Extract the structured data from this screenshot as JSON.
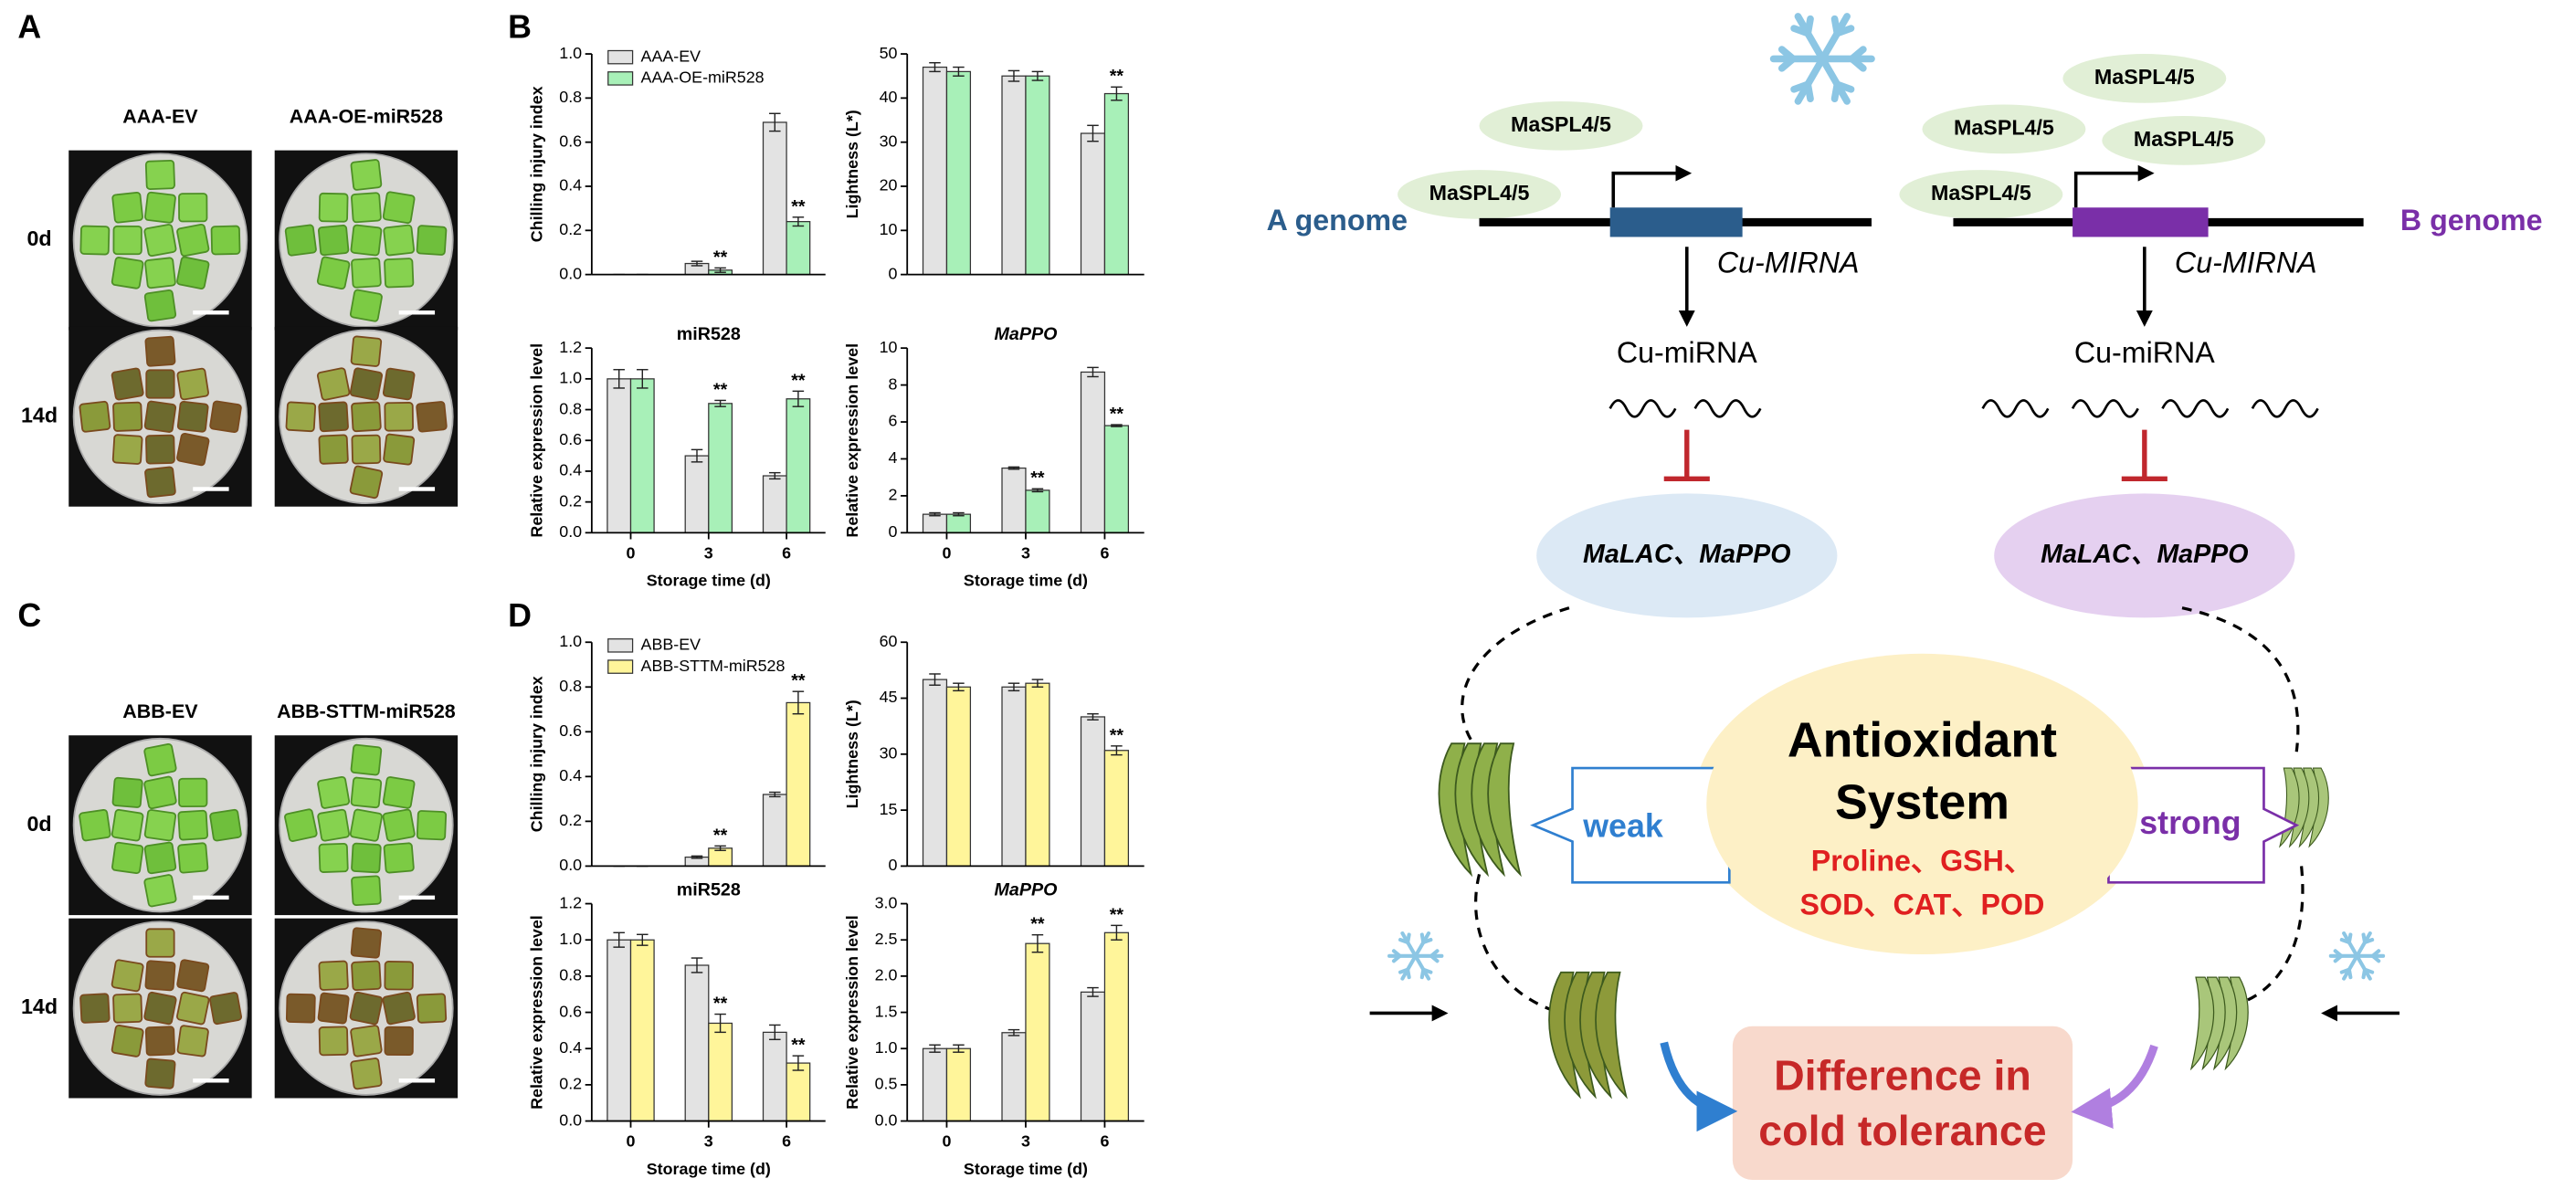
{
  "panels": {
    "a": "A",
    "b": "B",
    "c": "C",
    "d": "D"
  },
  "photos": [
    {
      "columns": [
        "AAA-EV",
        "AAA-OE-miR528"
      ],
      "rows": [
        "0d",
        "14d"
      ]
    },
    {
      "columns": [
        "ABB-EV",
        "ABB-STTM-miR528"
      ],
      "rows": [
        "0d",
        "14d"
      ]
    }
  ],
  "chart_data": [
    {
      "type": "bar",
      "ylabel": "Chilling injury index",
      "legend": "upper left",
      "ylim": [
        0,
        1.0
      ],
      "yticks": [
        {
          "value": 0,
          "label": "0.0"
        },
        0.2,
        0.4,
        0.6,
        0.8,
        {
          "value": 1.0,
          "label": "1.0"
        }
      ],
      "series": [
        {
          "name": "AAA-EV",
          "color": "#e3e3e3",
          "values": [
            0,
            0.05,
            0.69
          ],
          "errors": [
            0,
            0.01,
            0.04
          ]
        },
        {
          "name": "AAA-OE-miR528",
          "color": "#a8f0b8",
          "values": [
            0,
            0.02,
            0.24
          ],
          "errors": [
            0,
            0.01,
            0.02
          ],
          "significance": [
            null,
            "**",
            "**"
          ]
        }
      ]
    },
    {
      "type": "bar",
      "ylabel": "Lightness (L*)",
      "ylim": [
        0,
        50
      ],
      "yticks": [
        0,
        10,
        20,
        30,
        40,
        50
      ],
      "series": [
        {
          "color": "#e3e3e3",
          "values": [
            47,
            45,
            32
          ],
          "errors": [
            1,
            1.2,
            1.8
          ]
        },
        {
          "color": "#a8f0b8",
          "values": [
            46,
            45,
            41
          ],
          "errors": [
            1,
            1,
            1.5
          ],
          "significance": [
            null,
            null,
            "**"
          ]
        }
      ]
    },
    {
      "type": "bar",
      "title": "miR528",
      "ylabel": "Relative expression level",
      "xlabel": "Storage time (d)",
      "categories": [
        "0",
        "3",
        "6"
      ],
      "ylim": [
        0,
        1.2
      ],
      "yticks": [
        {
          "value": 0,
          "label": "0.0"
        },
        0.2,
        0.4,
        0.6,
        0.8,
        {
          "value": 1.0,
          "label": "1.0"
        },
        1.2
      ],
      "series": [
        {
          "color": "#e3e3e3",
          "values": [
            1.0,
            0.5,
            0.37
          ],
          "errors": [
            0.06,
            0.04,
            0.02
          ]
        },
        {
          "color": "#a8f0b8",
          "values": [
            1.0,
            0.84,
            0.87
          ],
          "errors": [
            0.06,
            0.02,
            0.05
          ],
          "significance": [
            null,
            "**",
            "**"
          ]
        }
      ]
    },
    {
      "type": "bar",
      "title": "MaPPO",
      "title_style": "italic",
      "ylabel": "Relative expression level",
      "xlabel": "Storage time (d)",
      "categories": [
        "0",
        "3",
        "6"
      ],
      "ylim": [
        0,
        10
      ],
      "yticks": [
        0,
        2,
        4,
        6,
        8,
        10
      ],
      "series": [
        {
          "color": "#e3e3e3",
          "values": [
            1.0,
            3.5,
            8.7
          ],
          "errors": [
            0.08,
            0.06,
            0.25
          ]
        },
        {
          "color": "#a8f0b8",
          "values": [
            1.0,
            2.3,
            5.8
          ],
          "errors": [
            0.08,
            0.08,
            0.05
          ],
          "significance": [
            null,
            "**",
            "**"
          ]
        }
      ]
    },
    {
      "type": "bar",
      "ylabel": "Chilling injury index",
      "legend": "upper left",
      "ylim": [
        0,
        1.0
      ],
      "yticks": [
        {
          "value": 0,
          "label": "0.0"
        },
        0.2,
        0.4,
        0.6,
        0.8,
        {
          "value": 1.0,
          "label": "1.0"
        }
      ],
      "series": [
        {
          "name": "ABB-EV",
          "color": "#e3e3e3",
          "values": [
            0,
            0.04,
            0.32
          ],
          "errors": [
            0,
            0.005,
            0.01
          ]
        },
        {
          "name": "ABB-STTM-miR528",
          "color": "#fff59a",
          "values": [
            0,
            0.08,
            0.73
          ],
          "errors": [
            0,
            0.01,
            0.05
          ],
          "significance": [
            null,
            "**",
            "**"
          ]
        }
      ]
    },
    {
      "type": "bar",
      "ylabel": "Lightness (L*)",
      "ylim": [
        0,
        60
      ],
      "yticks": [
        0,
        15,
        30,
        45,
        60
      ],
      "series": [
        {
          "color": "#e3e3e3",
          "values": [
            50,
            48,
            40
          ],
          "errors": [
            1.5,
            1,
            0.8
          ]
        },
        {
          "color": "#fff59a",
          "values": [
            48,
            49,
            31
          ],
          "errors": [
            1,
            1,
            1.2
          ],
          "significance": [
            null,
            null,
            "**"
          ]
        }
      ]
    },
    {
      "type": "bar",
      "title": "miR528",
      "ylabel": "Relative expression level",
      "xlabel": "Storage time (d)",
      "categories": [
        "0",
        "3",
        "6"
      ],
      "ylim": [
        0,
        1.2
      ],
      "yticks": [
        {
          "value": 0,
          "label": "0.0"
        },
        0.2,
        0.4,
        0.6,
        0.8,
        {
          "value": 1.0,
          "label": "1.0"
        },
        1.2
      ],
      "series": [
        {
          "color": "#e3e3e3",
          "values": [
            1.0,
            0.86,
            0.49
          ],
          "errors": [
            0.04,
            0.04,
            0.04
          ]
        },
        {
          "color": "#fff59a",
          "values": [
            1.0,
            0.54,
            0.32
          ],
          "errors": [
            0.03,
            0.05,
            0.04
          ],
          "significance": [
            null,
            "**",
            "**"
          ]
        }
      ]
    },
    {
      "type": "bar",
      "title": "MaPPO",
      "title_style": "italic",
      "ylabel": "Relative expression level",
      "xlabel": "Storage time (d)",
      "categories": [
        "0",
        "3",
        "6"
      ],
      "ylim": [
        0,
        3.0
      ],
      "yticks": [
        {
          "value": 0,
          "label": "0.0"
        },
        0.5,
        {
          "value": 1.0,
          "label": "1.0"
        },
        1.5,
        {
          "value": 2.0,
          "label": "2.0"
        },
        2.5,
        {
          "value": 3.0,
          "label": "3.0"
        }
      ],
      "series": [
        {
          "color": "#e3e3e3",
          "values": [
            1.0,
            1.22,
            1.78
          ],
          "errors": [
            0.05,
            0.04,
            0.06
          ]
        },
        {
          "color": "#fff59a",
          "values": [
            1.0,
            2.45,
            2.6
          ],
          "errors": [
            0.05,
            0.12,
            0.1
          ],
          "significance": [
            null,
            "**",
            "**"
          ]
        }
      ]
    }
  ],
  "diagram": {
    "left": {
      "genome": "A genome",
      "factors": [
        "MaSPL4/5",
        "MaSPL4/5"
      ],
      "gene": "Cu-MIRNA",
      "mirna": "Cu-miRNA",
      "targets": "MaLAC、MaPPO",
      "tolerance": "weak"
    },
    "right": {
      "genome": "B genome",
      "factors": [
        "MaSPL4/5",
        "MaSPL4/5",
        "MaSPL4/5",
        "MaSPL4/5"
      ],
      "gene": "Cu-MIRNA",
      "mirna": "Cu-miRNA",
      "targets": "MaLAC、MaPPO",
      "tolerance": "strong"
    },
    "system": [
      "Antioxidant",
      "System"
    ],
    "components": [
      "Proline、GSH、",
      "SOD、CAT、POD"
    ],
    "outcome": [
      "Difference in",
      "cold tolerance"
    ]
  }
}
